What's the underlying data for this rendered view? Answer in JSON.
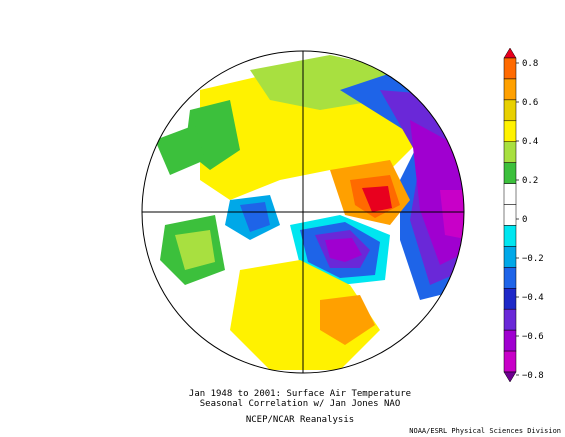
{
  "figure": {
    "caption_line1": "Jan 1948 to 2001: Surface Air Temperature",
    "caption_line2": "Seasonal Correlation w/ Jan Jones NAO",
    "caption_line3": "NCEP/NCAR Reanalysis",
    "credit": "NOAA/ESRL Physical Sciences Division"
  },
  "colorbar": {
    "ticks": [
      "0.8",
      "0.6",
      "0.4",
      "0.2",
      "0",
      "−0.2",
      "−0.4",
      "−0.6",
      "−0.8"
    ],
    "bins": [
      {
        "color": "#e8001e"
      },
      {
        "color": "#ff6a00"
      },
      {
        "color": "#ffa000"
      },
      {
        "color": "#e8d000"
      },
      {
        "color": "#fff200"
      },
      {
        "color": "#a8e040"
      },
      {
        "color": "#3cc03c"
      },
      {
        "color": "#ffffff"
      },
      {
        "color": "#ffffff"
      },
      {
        "color": "#00e6f0"
      },
      {
        "color": "#00a8e8"
      },
      {
        "color": "#1e64e8"
      },
      {
        "color": "#1e28c8"
      },
      {
        "color": "#6a28d8"
      },
      {
        "color": "#a000d0"
      },
      {
        "color": "#c800c8"
      },
      {
        "color": "#6e0090"
      }
    ]
  },
  "map": {
    "projection": "polar stereographic, north pole",
    "field": "correlation"
  }
}
